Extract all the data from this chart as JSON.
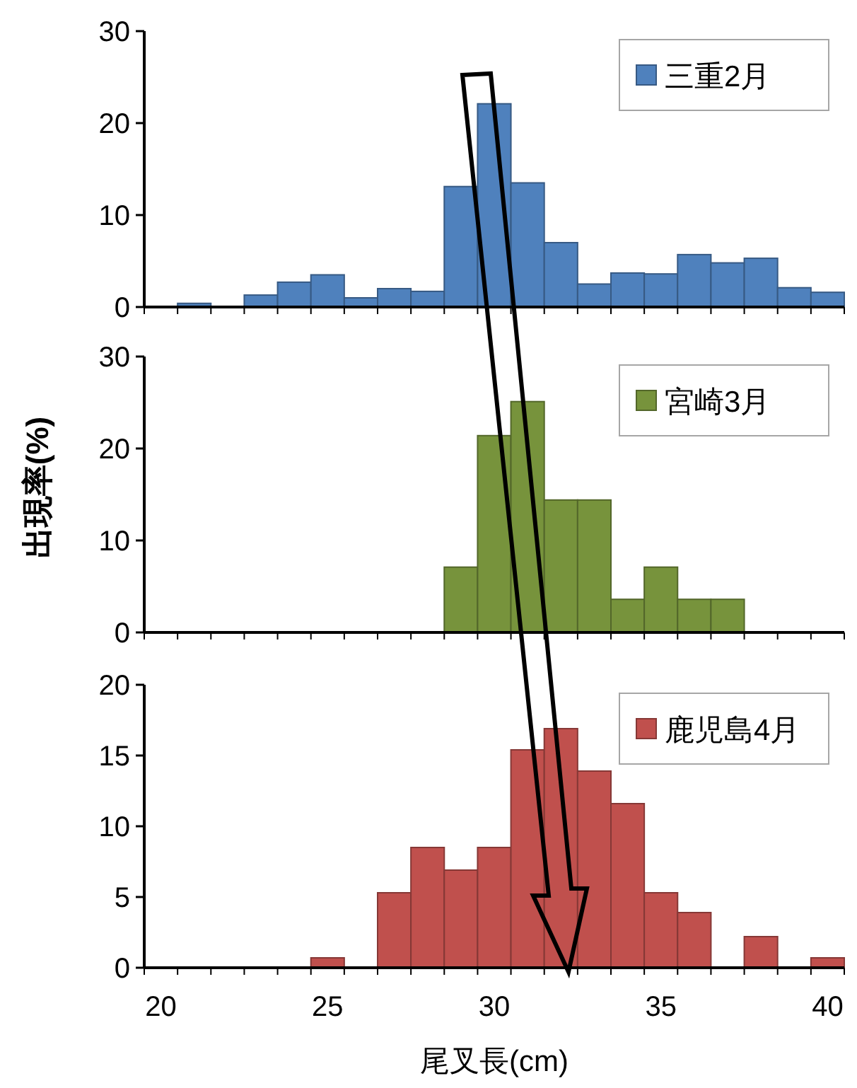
{
  "chart_data": [
    {
      "type": "histogram",
      "bins": [
        19.5,
        20.5,
        21.5,
        22.5,
        23.5,
        24.5,
        25.5,
        26.5,
        27.5,
        28.5,
        29.5,
        30.5,
        31.5,
        32.5,
        33.5,
        34.5,
        35.5,
        36.5,
        37.5,
        38.5,
        39.5,
        40.5
      ],
      "series": [
        {
          "name": "三重2月",
          "color": "#4f81bd",
          "values": [
            0,
            0.4,
            0,
            1.3,
            2.7,
            3.5,
            1.0,
            2.0,
            1.7,
            13.1,
            22.1,
            13.5,
            7.0,
            2.5,
            3.7,
            3.6,
            5.7,
            4.8,
            5.3,
            2.1,
            1.6
          ]
        }
      ],
      "xlim": [
        19.5,
        40.5
      ],
      "ylim": [
        0,
        30
      ],
      "yticks": [
        0,
        10,
        20,
        30
      ],
      "legend": "top right",
      "tick_labels": "y"
    },
    {
      "type": "histogram",
      "bins": [
        19.5,
        20.5,
        21.5,
        22.5,
        23.5,
        24.5,
        25.5,
        26.5,
        27.5,
        28.5,
        29.5,
        30.5,
        31.5,
        32.5,
        33.5,
        34.5,
        35.5,
        36.5,
        37.5,
        38.5,
        39.5,
        40.5
      ],
      "series": [
        {
          "name": "宮崎3月",
          "color": "#77933c",
          "values": [
            0,
            0,
            0,
            0,
            0,
            0,
            0,
            0,
            0,
            7.1,
            21.4,
            25.1,
            14.4,
            14.4,
            3.6,
            7.1,
            3.6,
            3.6,
            0,
            0,
            0
          ]
        }
      ],
      "ylabel": "出現率(%)",
      "xlim": [
        19.5,
        40.5
      ],
      "ylim": [
        0,
        30
      ],
      "yticks": [
        0,
        10,
        20,
        30
      ],
      "legend": "top right",
      "tick_labels": "y"
    },
    {
      "type": "histogram",
      "bins": [
        19.5,
        20.5,
        21.5,
        22.5,
        23.5,
        24.5,
        25.5,
        26.5,
        27.5,
        28.5,
        29.5,
        30.5,
        31.5,
        32.5,
        33.5,
        34.5,
        35.5,
        36.5,
        37.5,
        38.5,
        39.5,
        40.5
      ],
      "series": [
        {
          "name": "鹿児島4月",
          "color": "#c0504d",
          "values": [
            0,
            0,
            0,
            0,
            0,
            0.7,
            0,
            5.3,
            8.5,
            6.9,
            8.5,
            15.4,
            16.9,
            13.9,
            11.6,
            5.3,
            3.9,
            0,
            2.2,
            0,
            0.7
          ]
        }
      ],
      "xlabel": "尾叉長(cm)",
      "xlim": [
        19.5,
        40.5
      ],
      "xticks": [
        20,
        25,
        30,
        35,
        40
      ],
      "ylim": [
        0,
        20
      ],
      "yticks": [
        0,
        5,
        10,
        15,
        20
      ],
      "legend": "top right"
    }
  ]
}
